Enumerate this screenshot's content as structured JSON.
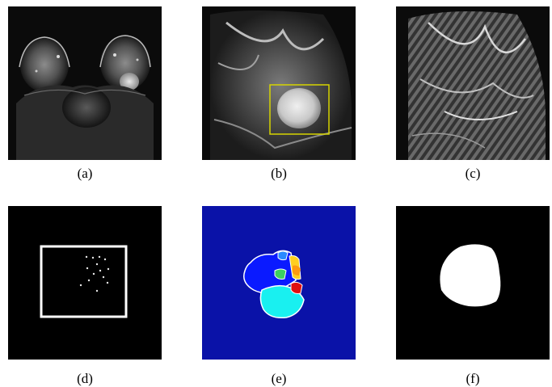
{
  "figure": {
    "panels": [
      {
        "id": "a",
        "caption": "(a)",
        "content": "bilateral breast MRI axial slice"
      },
      {
        "id": "b",
        "caption": "(b)",
        "content": "zoomed breast MRI with lesion bounding box"
      },
      {
        "id": "c",
        "caption": "(c)",
        "content": "texture-enhanced breast image"
      },
      {
        "id": "d",
        "caption": "(d)",
        "content": "seed points inside bounding box"
      },
      {
        "id": "e",
        "caption": "(e)",
        "content": "color-coded region clustering"
      },
      {
        "id": "f",
        "caption": "(f)",
        "content": "binary lesion segmentation mask"
      }
    ]
  },
  "colors": {
    "page": "#ffffff",
    "image_bg": "#000000",
    "box_yellow": "#d6d400",
    "cluster_bg": "#0a12a8",
    "cluster_blue": "#0a1aff",
    "cluster_cyan": "#19f0f0",
    "cluster_green": "#3cd060",
    "cluster_orange": "#ff9a10",
    "cluster_red": "#e01010",
    "mask": "#ffffff"
  }
}
